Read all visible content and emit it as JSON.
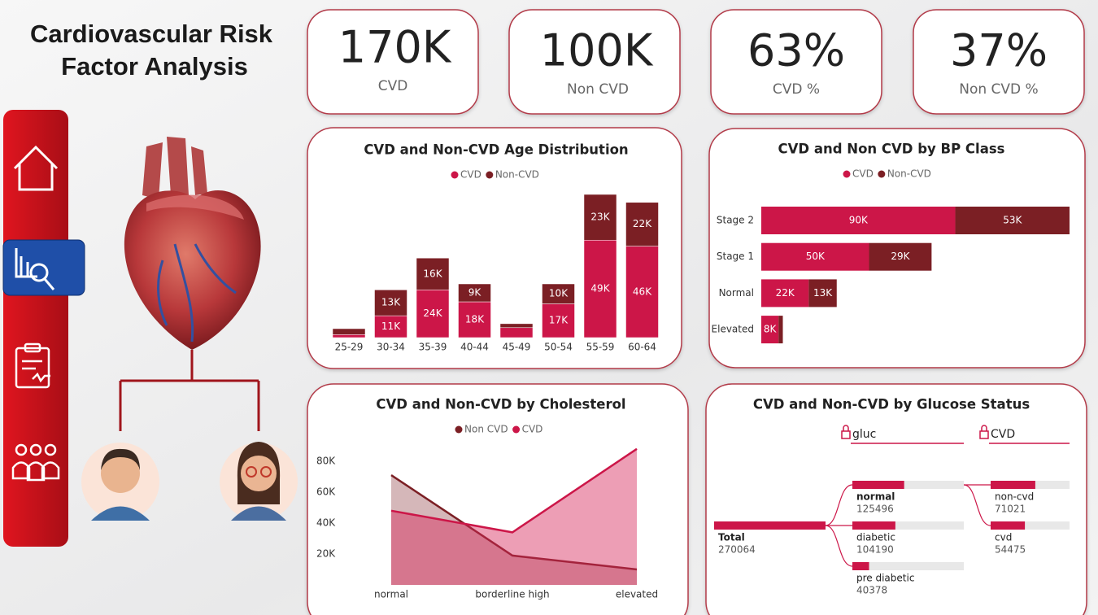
{
  "title": [
    "Cardiovascular Risk",
    "Factor Analysis"
  ],
  "kpis": [
    {
      "value": "170K",
      "label": "CVD"
    },
    {
      "value": "100K",
      "label": "Non CVD"
    },
    {
      "value": "63%",
      "label": "CVD %"
    },
    {
      "value": "37%",
      "label": "Non CVD %"
    }
  ],
  "chart_data": [
    {
      "type": "bar",
      "title": "CVD and Non-CVD Age Distribution",
      "categories": [
        "25-29",
        "30-34",
        "35-39",
        "40-44",
        "45-49",
        "50-54",
        "55-59",
        "60-64"
      ],
      "series": [
        {
          "name": "CVD",
          "color": "#cc1648",
          "values": [
            1500,
            11000,
            24000,
            18000,
            5000,
            17000,
            49000,
            46000
          ],
          "value_labels": [
            null,
            "11K",
            "24K",
            "18K",
            null,
            "17K",
            "49K",
            "46K"
          ]
        },
        {
          "name": "Non-CVD",
          "color": "#7b1f24",
          "values": [
            3000,
            13000,
            16000,
            9000,
            2000,
            10000,
            23000,
            22000
          ],
          "value_labels": [
            null,
            "13K",
            "16K",
            "9K",
            null,
            "10K",
            "23K",
            "22K"
          ]
        }
      ]
    },
    {
      "type": "barh",
      "title": "CVD and Non CVD by BP Class",
      "categories": [
        "Stage 2",
        "Stage 1",
        "Normal",
        "Elevated"
      ],
      "series": [
        {
          "name": "CVD",
          "color": "#cc1648",
          "values": [
            90000,
            50000,
            22000,
            8000
          ],
          "value_labels": [
            "90K",
            "50K",
            "22K",
            "8K"
          ]
        },
        {
          "name": "Non-CVD",
          "color": "#7b1f24",
          "values": [
            53000,
            29000,
            13000,
            2000
          ],
          "value_labels": [
            "53K",
            "29K",
            "13K",
            null
          ]
        }
      ]
    },
    {
      "type": "area",
      "title": "CVD and Non-CVD by Cholesterol",
      "categories": [
        "normal",
        "borderline high",
        "elevated"
      ],
      "series": [
        {
          "name": "Non CVD",
          "color": "#7b1f24",
          "values": [
            71000,
            19000,
            10000
          ]
        },
        {
          "name": "CVD",
          "color": "#cc1648",
          "values": [
            48000,
            34000,
            88000
          ]
        }
      ],
      "ylim": [
        0,
        90000
      ],
      "yticks": [
        {
          "value": 20000,
          "label": "20K"
        },
        {
          "value": 40000,
          "label": "40K"
        },
        {
          "value": 60000,
          "label": "60K"
        },
        {
          "value": 80000,
          "label": "80K"
        }
      ]
    },
    {
      "type": "tree",
      "title": "CVD and Non-CVD by Glucose Status",
      "levels": [
        "gluc",
        "CVD"
      ],
      "color": "#cc1648",
      "root": {
        "label": "Total",
        "value": 270064
      },
      "nodes": [
        {
          "label": "normal",
          "value": 125496
        },
        {
          "label": "diabetic",
          "value": 104190
        },
        {
          "label": "pre diabetic",
          "value": 40378
        }
      ],
      "children": [
        {
          "label": "non-cvd",
          "value": 71021
        },
        {
          "label": "cvd",
          "value": 54475
        }
      ]
    }
  ]
}
